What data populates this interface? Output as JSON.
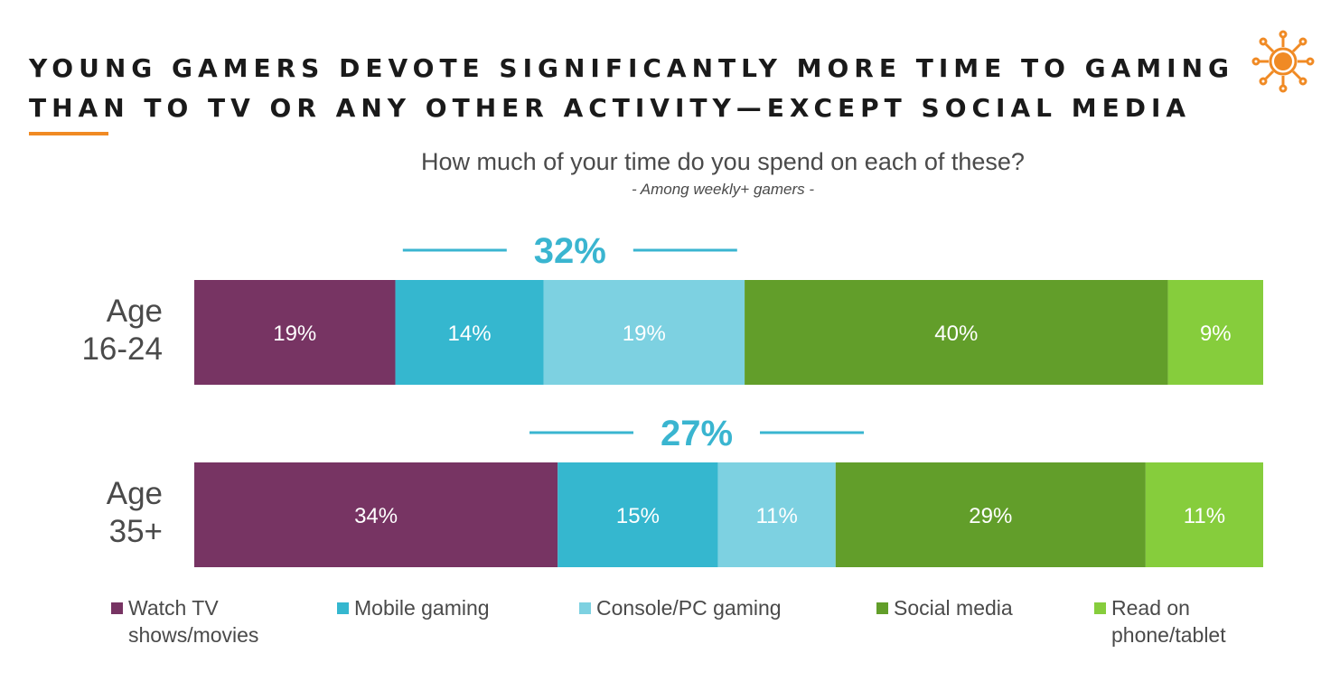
{
  "title": {
    "line1": "YOUNG GAMERS DEVOTE SIGNIFICANTLY MORE TIME TO GAMING",
    "line2": "THAN TO TV OR ANY OTHER ACTIVITY—EXCEPT SOCIAL MEDIA"
  },
  "logo_icon": "sun-icon",
  "colors": {
    "tv": "#773463",
    "mobile": "#35b7cf",
    "console": "#7dd1e1",
    "social": "#629e2a",
    "read": "#86cd3c",
    "gaming_accent": "#3ab5d0",
    "title_rule": "#f08a24"
  },
  "chart_data": {
    "type": "bar",
    "orientation": "horizontal",
    "stacked": true,
    "title": "How much of your time do you spend on each of these?",
    "subtitle": "- Among weekly+ gamers -",
    "unit": "%",
    "categories": [
      "Age\n16-24",
      "Age\n35+"
    ],
    "series": [
      {
        "name": "Watch TV shows/movies",
        "legend_lines": [
          "Watch TV",
          "shows/movies"
        ],
        "values": [
          19,
          34
        ],
        "color_key": "tv"
      },
      {
        "name": "Mobile gaming",
        "legend_lines": [
          "Mobile gaming"
        ],
        "values": [
          14,
          15
        ],
        "color_key": "mobile"
      },
      {
        "name": "Console/PC gaming",
        "legend_lines": [
          "Console/PC gaming"
        ],
        "values": [
          19,
          11
        ],
        "color_key": "console"
      },
      {
        "name": "Social media",
        "legend_lines": [
          "Social media"
        ],
        "values": [
          40,
          29
        ],
        "color_key": "social"
      },
      {
        "name": "Read on phone/tablet",
        "legend_lines": [
          "Read on",
          "phone/tablet"
        ],
        "values": [
          9,
          11
        ],
        "color_key": "read"
      }
    ],
    "gaming_totals": [
      32,
      27
    ],
    "xlim": [
      0,
      100
    ]
  }
}
